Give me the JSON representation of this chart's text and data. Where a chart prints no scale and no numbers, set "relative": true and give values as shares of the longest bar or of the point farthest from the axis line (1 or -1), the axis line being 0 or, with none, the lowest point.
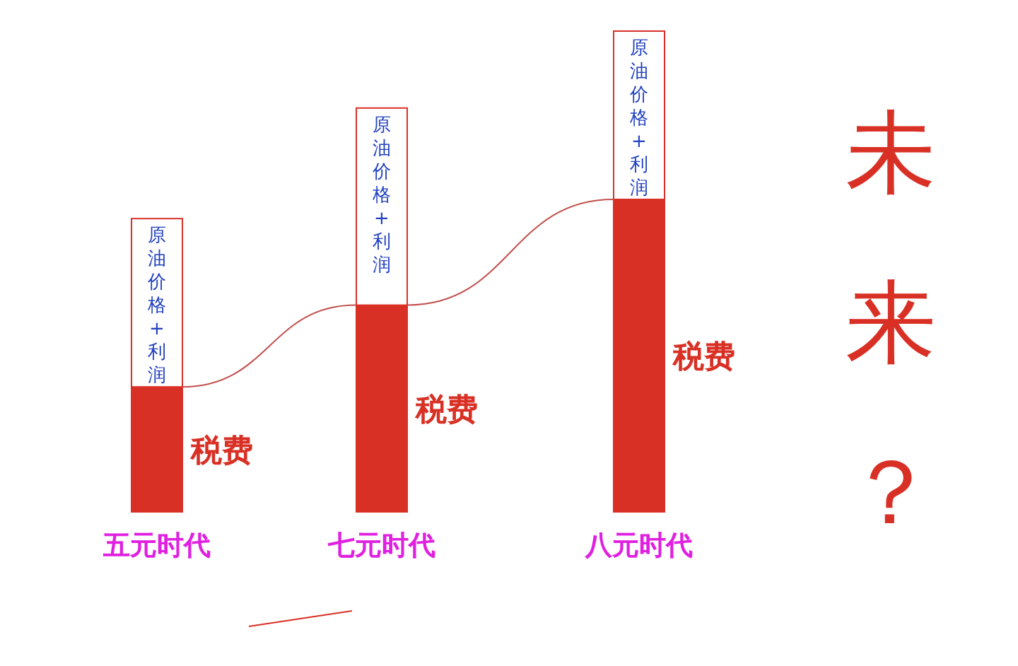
{
  "chart_data": {
    "type": "bar",
    "relative": true,
    "stacked": true,
    "legend": false,
    "categories": [
      "五元时代",
      "七元时代",
      "八元时代"
    ],
    "series": [
      {
        "name": "税费",
        "color": "#d93025",
        "values": [
          0.26,
          0.43,
          0.65
        ]
      },
      {
        "name": "原油价格+利润",
        "color": "#ffffff",
        "values": [
          0.35,
          0.41,
          0.35
        ]
      }
    ],
    "annotations": [
      "未来？"
    ]
  }
}
